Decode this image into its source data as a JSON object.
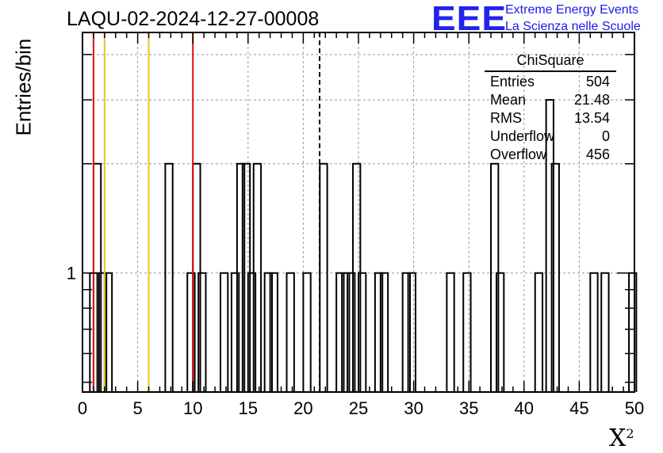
{
  "title": "LAQU-02-2024-12-27-00008",
  "logo": {
    "text": "EEE",
    "line1": "Extreme Energy Events",
    "line2": "La Scienza nelle Scuole",
    "color": "#2222ee"
  },
  "stats": {
    "title": "ChiSquare",
    "rows": [
      {
        "label": "Entries",
        "value": "504"
      },
      {
        "label": "Mean",
        "value": "21.48"
      },
      {
        "label": "RMS",
        "value": "13.54"
      },
      {
        "label": "Underflow",
        "value": "0"
      },
      {
        "label": "Overflow",
        "value": "456"
      }
    ]
  },
  "chart_data": {
    "type": "histogram",
    "xlabel": "X",
    "xlabel_sup": "2",
    "ylabel": "Entries/bin",
    "xlim": [
      0,
      50
    ],
    "ylim": [
      0.47,
      4.6
    ],
    "log_y": true,
    "grid": true,
    "bin_width": 0.67,
    "x_ticks": [
      0,
      5,
      10,
      15,
      20,
      25,
      30,
      35,
      40,
      45,
      50
    ],
    "y_tick_labels": [
      {
        "value": 1,
        "label": "1"
      }
    ],
    "bins": [
      {
        "x": 0.67,
        "count": 1
      },
      {
        "x": 1.0,
        "count": 2
      },
      {
        "x": 1.5,
        "count": 1
      },
      {
        "x": 2.0,
        "count": 1
      },
      {
        "x": 7.5,
        "count": 2
      },
      {
        "x": 9.5,
        "count": 1
      },
      {
        "x": 10.0,
        "count": 2
      },
      {
        "x": 10.5,
        "count": 1
      },
      {
        "x": 12.5,
        "count": 1
      },
      {
        "x": 13.5,
        "count": 1
      },
      {
        "x": 14.0,
        "count": 2
      },
      {
        "x": 14.5,
        "count": 2
      },
      {
        "x": 15.0,
        "count": 1
      },
      {
        "x": 15.5,
        "count": 2
      },
      {
        "x": 16.5,
        "count": 1
      },
      {
        "x": 17.0,
        "count": 1
      },
      {
        "x": 18.5,
        "count": 1
      },
      {
        "x": 20.0,
        "count": 1
      },
      {
        "x": 21.5,
        "count": 2
      },
      {
        "x": 23.0,
        "count": 1
      },
      {
        "x": 23.5,
        "count": 1
      },
      {
        "x": 24.0,
        "count": 1
      },
      {
        "x": 24.5,
        "count": 2
      },
      {
        "x": 25.0,
        "count": 1
      },
      {
        "x": 26.5,
        "count": 1
      },
      {
        "x": 27.0,
        "count": 1
      },
      {
        "x": 29.0,
        "count": 1
      },
      {
        "x": 29.5,
        "count": 1
      },
      {
        "x": 33.0,
        "count": 1
      },
      {
        "x": 34.5,
        "count": 1
      },
      {
        "x": 37.0,
        "count": 2
      },
      {
        "x": 37.5,
        "count": 1
      },
      {
        "x": 41.0,
        "count": 1
      },
      {
        "x": 42.0,
        "count": 3
      },
      {
        "x": 42.5,
        "count": 2
      },
      {
        "x": 46.0,
        "count": 1
      },
      {
        "x": 47.0,
        "count": 1
      },
      {
        "x": 49.5,
        "count": 1
      }
    ],
    "reference_lines": [
      {
        "x": 1.0,
        "color": "#dd1111",
        "style": "solid"
      },
      {
        "x": 2.0,
        "color": "#f0c020",
        "style": "solid"
      },
      {
        "x": 6.0,
        "color": "#f0c020",
        "style": "solid"
      },
      {
        "x": 10.0,
        "color": "#dd1111",
        "style": "solid"
      },
      {
        "x": 21.48,
        "color": "#000000",
        "style": "dashed"
      }
    ]
  }
}
